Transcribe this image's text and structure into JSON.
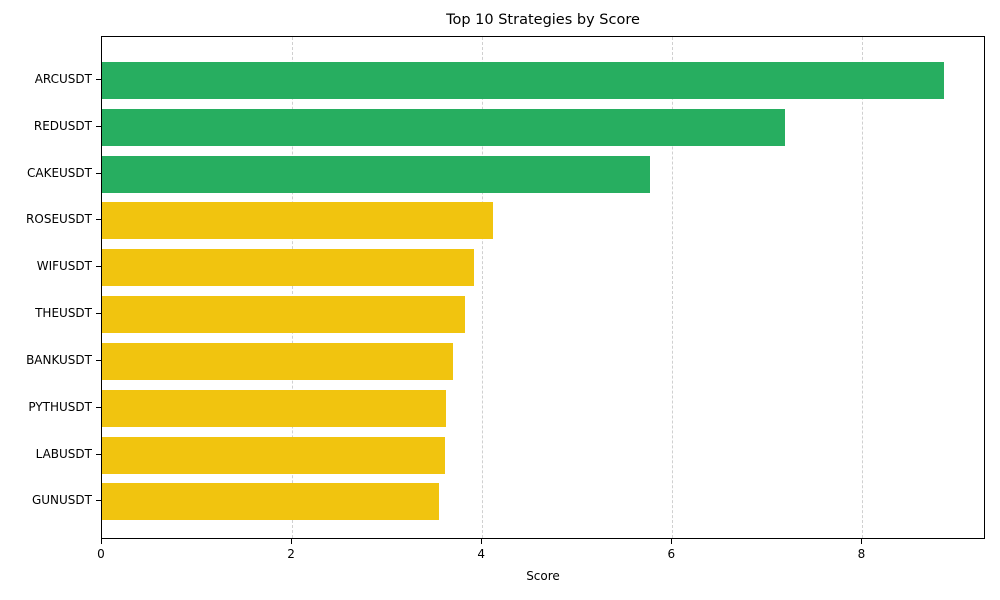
{
  "chart_data": {
    "type": "bar",
    "orientation": "horizontal",
    "title": "Top 10 Strategies by Score",
    "xlabel": "Score",
    "ylabel": "",
    "xlim": [
      0,
      9.3
    ],
    "xticks": [
      0,
      2,
      4,
      6,
      8
    ],
    "grid": {
      "x": true,
      "y": false,
      "style": "dashed"
    },
    "legend": null,
    "categories": [
      "ARCUSDT",
      "REDUSDT",
      "CAKEUSDT",
      "ROSEUSDT",
      "WIFUSDT",
      "THEUSDT",
      "BANKUSDT",
      "PYTHUSDT",
      "LABUSDT",
      "GUNUSDT"
    ],
    "values": [
      8.86,
      7.19,
      5.76,
      4.11,
      3.91,
      3.82,
      3.69,
      3.62,
      3.61,
      3.55
    ],
    "colors": [
      "#27ae60",
      "#27ae60",
      "#27ae60",
      "#f1c40f",
      "#f1c40f",
      "#f1c40f",
      "#f1c40f",
      "#f1c40f",
      "#f1c40f",
      "#f1c40f"
    ]
  }
}
